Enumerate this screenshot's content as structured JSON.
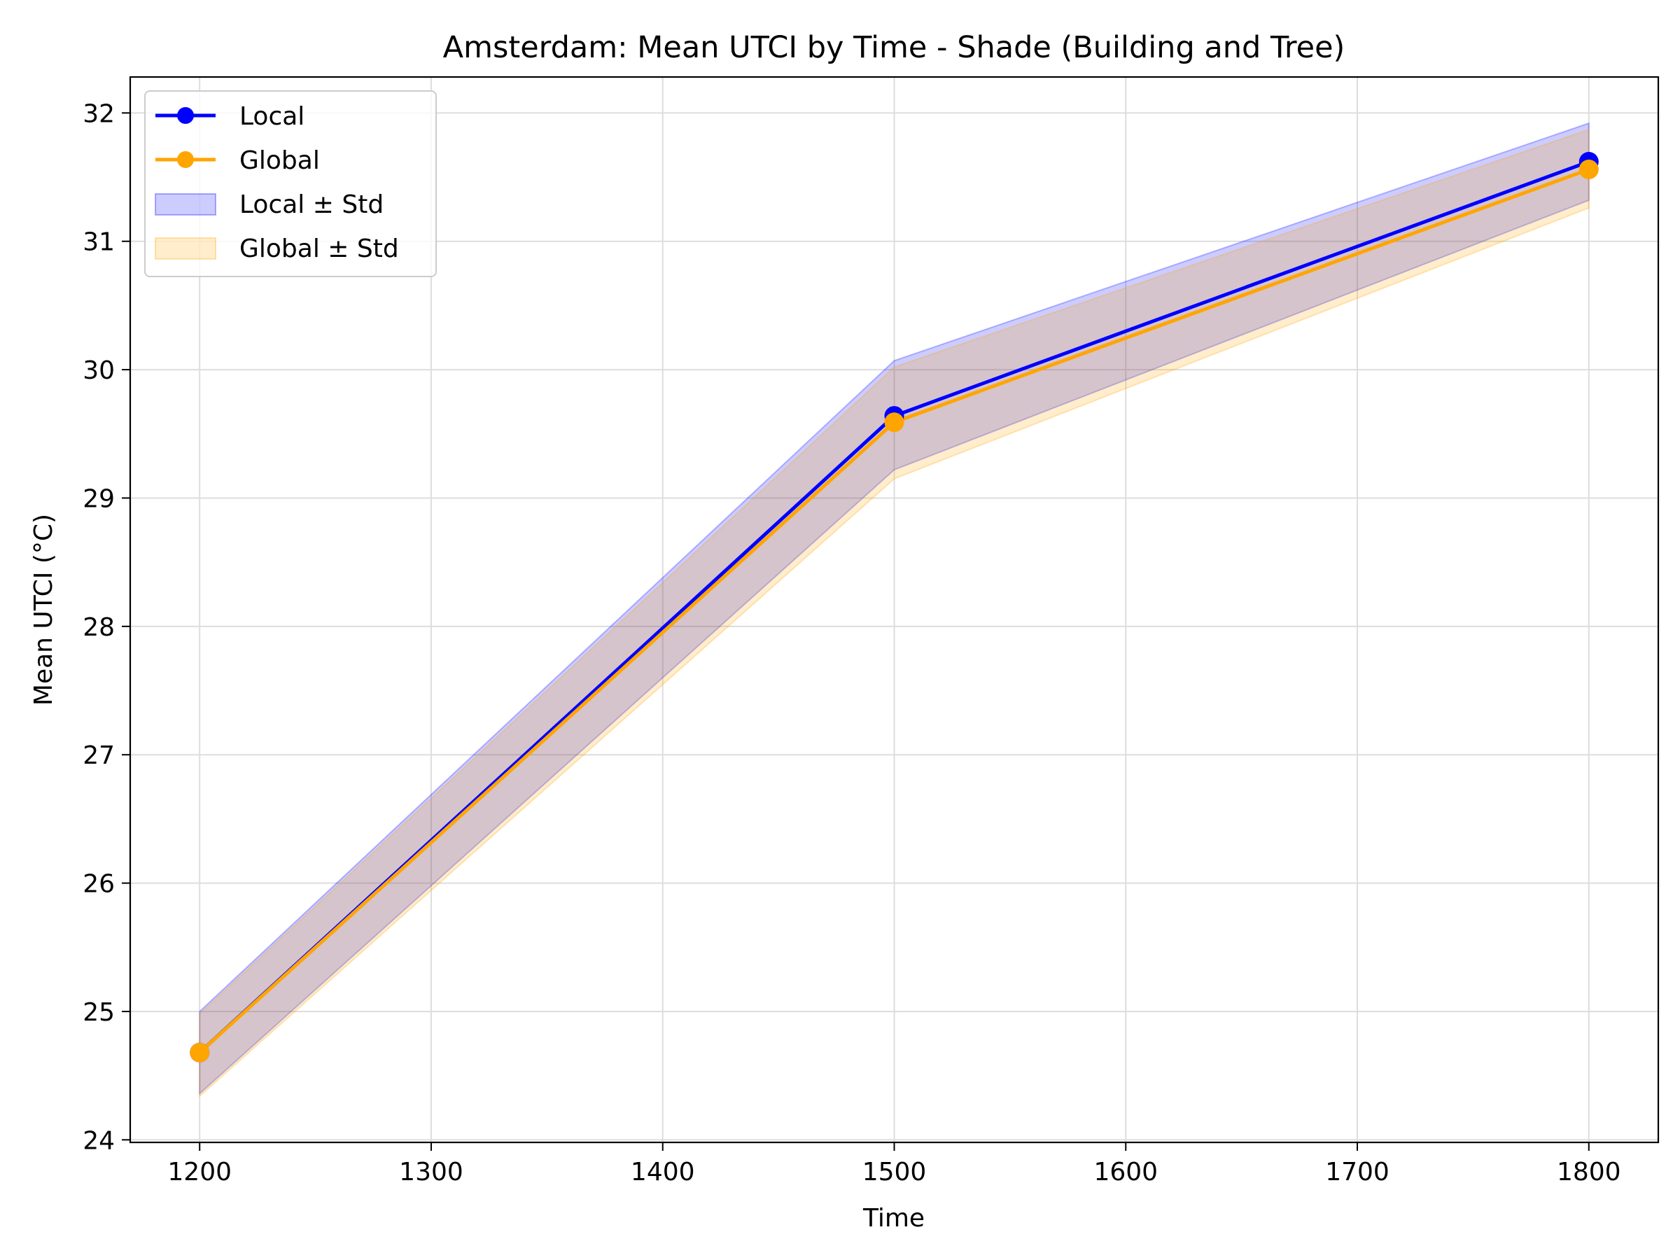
{
  "chart_data": {
    "type": "line",
    "title": "Amsterdam: Mean UTCI by Time - Shade (Building and Tree)",
    "xlabel": "Time",
    "ylabel": "Mean UTCI (°C)",
    "xlim": [
      1170,
      1830
    ],
    "ylim": [
      23.98,
      32.28
    ],
    "xticks": [
      1200,
      1300,
      1400,
      1500,
      1600,
      1700,
      1800
    ],
    "yticks": [
      24,
      25,
      26,
      27,
      28,
      29,
      30,
      31,
      32
    ],
    "grid": true,
    "legend_position": "top-left",
    "x": [
      1200,
      1500,
      1800
    ],
    "series": [
      {
        "name": "Local",
        "values": [
          24.68,
          29.64,
          31.62
        ],
        "color": "#0000ff",
        "marker": "circle",
        "band_name": "Local ± Std",
        "band_lower": [
          24.36,
          29.22,
          31.32
        ],
        "band_upper": [
          25.0,
          30.07,
          31.92
        ],
        "band_color": "#0000ff"
      },
      {
        "name": "Global",
        "values": [
          24.68,
          29.59,
          31.56
        ],
        "color": "#ffa500",
        "marker": "circle",
        "band_name": "Global ± Std",
        "band_lower": [
          24.34,
          29.15,
          31.26
        ],
        "band_upper": [
          24.98,
          30.02,
          31.87
        ],
        "band_color": "#ffa500"
      }
    ]
  }
}
